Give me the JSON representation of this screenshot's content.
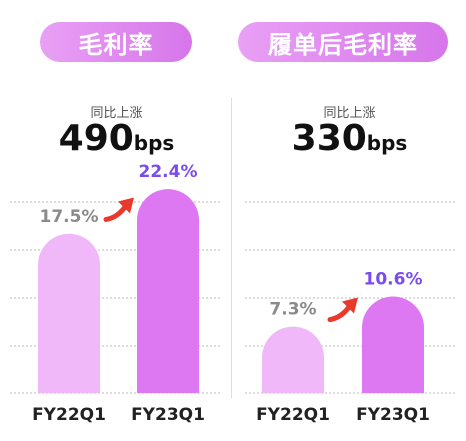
{
  "chart_data": [
    {
      "type": "bar",
      "title": "毛利率",
      "subtitle": "同比上涨",
      "change_value": "490",
      "change_unit": "bps",
      "categories": [
        "FY22Q1",
        "FY23Q1"
      ],
      "values": [
        17.5,
        22.4
      ],
      "value_labels": [
        "17.5%",
        "22.4%"
      ],
      "bar_colors": [
        "#f0b8f8",
        "#de78f2"
      ],
      "label_colors": [
        "#8a8a8a",
        "#7a4cf0"
      ],
      "arrow_color": "#e8392a",
      "grid": true
    },
    {
      "type": "bar",
      "title": "履单后毛利率",
      "subtitle": "同比上涨",
      "change_value": "330",
      "change_unit": "bps",
      "categories": [
        "FY22Q1",
        "FY23Q1"
      ],
      "values": [
        7.3,
        10.6
      ],
      "value_labels": [
        "7.3%",
        "10.6%"
      ],
      "bar_colors": [
        "#f0b8f8",
        "#de78f2"
      ],
      "label_colors": [
        "#8a8a8a",
        "#7a4cf0"
      ],
      "arrow_color": "#e8392a",
      "grid": true
    }
  ]
}
